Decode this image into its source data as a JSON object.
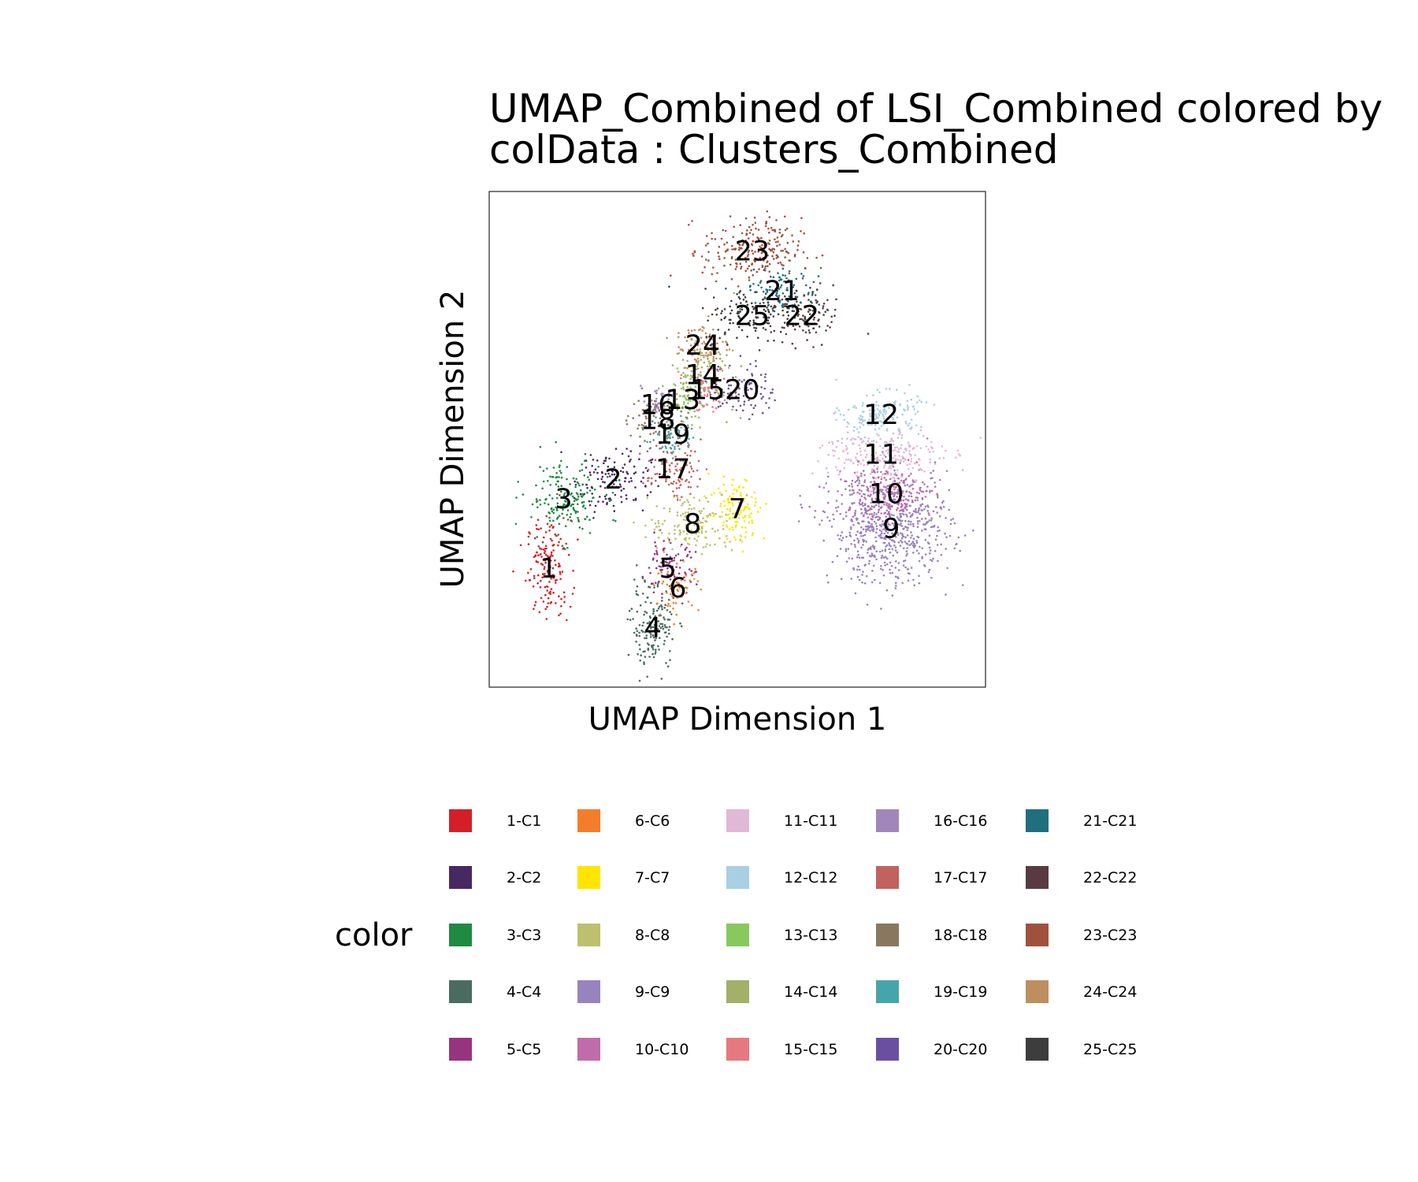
{
  "chart_data": {
    "type": "scatter",
    "title": [
      "UMAP_Combined of LSI_Combined  colored by",
      "colData :  Clusters_Combined"
    ],
    "xlabel": "UMAP Dimension 1",
    "ylabel": "UMAP Dimension 2",
    "xlim": [
      0,
      100
    ],
    "ylim": [
      0,
      100
    ],
    "grid": false,
    "legend_title": "color",
    "legend_position": "bottom",
    "clusters": [
      {
        "label": "1",
        "legend": "1-C1",
        "color": "#D51F26",
        "x": 12,
        "y": 24,
        "rx": 4,
        "ry": 9,
        "n": 160
      },
      {
        "label": "2",
        "legend": "2-C2",
        "color": "#482862",
        "x": 25,
        "y": 42,
        "rx": 7,
        "ry": 6,
        "n": 130
      },
      {
        "label": "3",
        "legend": "3-C3",
        "color": "#208A42",
        "x": 15,
        "y": 38,
        "rx": 7,
        "ry": 7,
        "n": 170
      },
      {
        "label": "4",
        "legend": "4-C4",
        "color": "#4A6C60",
        "x": 33,
        "y": 12,
        "rx": 4,
        "ry": 8,
        "n": 170
      },
      {
        "label": "5",
        "legend": "5-C5",
        "color": "#973480",
        "x": 36,
        "y": 24,
        "rx": 5,
        "ry": 5,
        "n": 90
      },
      {
        "label": "6",
        "legend": "6-C6",
        "color": "#F47D2B",
        "x": 38,
        "y": 20,
        "rx": 4,
        "ry": 4,
        "n": 60
      },
      {
        "label": "7",
        "legend": "7-C7",
        "color": "#FEE500",
        "x": 50,
        "y": 36,
        "rx": 5,
        "ry": 6,
        "n": 120
      },
      {
        "label": "8",
        "legend": "8-C8",
        "color": "#BDC06F",
        "x": 41,
        "y": 33,
        "rx": 8,
        "ry": 6,
        "n": 150
      },
      {
        "label": "9",
        "legend": "9-C9",
        "color": "#9983BD",
        "x": 81,
        "y": 32,
        "rx": 11,
        "ry": 10,
        "n": 650
      },
      {
        "label": "10",
        "legend": "10-C10",
        "color": "#C06CAB",
        "x": 80,
        "y": 39,
        "rx": 9,
        "ry": 5,
        "n": 220
      },
      {
        "label": "11",
        "legend": "11-C11",
        "color": "#E0B9D6",
        "x": 79,
        "y": 47,
        "rx": 11,
        "ry": 5,
        "n": 240
      },
      {
        "label": "12",
        "legend": "12-C12",
        "color": "#A9CFE3",
        "x": 79,
        "y": 55,
        "rx": 7,
        "ry": 4,
        "n": 160
      },
      {
        "label": "13",
        "legend": "13-C13",
        "color": "#89C75F",
        "x": 39,
        "y": 58,
        "rx": 4,
        "ry": 4,
        "n": 60
      },
      {
        "label": "14",
        "legend": "14-C14",
        "color": "#A3B067",
        "x": 43,
        "y": 63,
        "rx": 6,
        "ry": 7,
        "n": 120
      },
      {
        "label": "15",
        "legend": "15-C15",
        "color": "#E6797F",
        "x": 44,
        "y": 60,
        "rx": 4,
        "ry": 4,
        "n": 60
      },
      {
        "label": "16",
        "legend": "16-C16",
        "color": "#A186BC",
        "x": 34,
        "y": 57,
        "rx": 3,
        "ry": 3,
        "n": 40
      },
      {
        "label": "17",
        "legend": "17-C17",
        "color": "#C2625E",
        "x": 37,
        "y": 44,
        "rx": 5,
        "ry": 5,
        "n": 100
      },
      {
        "label": "18",
        "legend": "18-C18",
        "color": "#8A7760",
        "x": 34,
        "y": 54,
        "rx": 5,
        "ry": 5,
        "n": 90
      },
      {
        "label": "19",
        "legend": "19-C19",
        "color": "#46A5A8",
        "x": 37,
        "y": 51,
        "rx": 4,
        "ry": 4,
        "n": 60
      },
      {
        "label": "20",
        "legend": "20-C20",
        "color": "#6A4FA0",
        "x": 51,
        "y": 60,
        "rx": 6,
        "ry": 5,
        "n": 90
      },
      {
        "label": "21",
        "legend": "21-C21",
        "color": "#1F6F7F",
        "x": 59,
        "y": 80,
        "rx": 7,
        "ry": 4,
        "n": 110
      },
      {
        "label": "22",
        "legend": "22-C22",
        "color": "#583B40",
        "x": 63,
        "y": 75,
        "rx": 8,
        "ry": 5,
        "n": 120
      },
      {
        "label": "23",
        "legend": "23-C23",
        "color": "#A0513D",
        "x": 53,
        "y": 88,
        "rx": 9,
        "ry": 6,
        "n": 220
      },
      {
        "label": "24",
        "legend": "24-C24",
        "color": "#BE8E5E",
        "x": 43,
        "y": 69,
        "rx": 5,
        "ry": 5,
        "n": 90
      },
      {
        "label": "25",
        "legend": "25-C25",
        "color": "#3D3D3D",
        "x": 53,
        "y": 75,
        "rx": 9,
        "ry": 5,
        "n": 120
      }
    ]
  }
}
